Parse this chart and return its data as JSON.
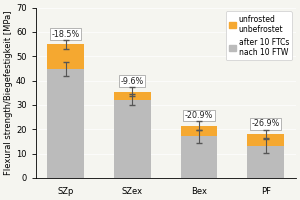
{
  "categories": [
    "SZp",
    "SZex",
    "Bex",
    "PF"
  ],
  "unfrosted_values": [
    55.0,
    35.5,
    21.5,
    18.0
  ],
  "after_ftc_values": [
    44.8,
    32.2,
    17.0,
    13.2
  ],
  "error_bars_top": [
    1.8,
    1.8,
    1.8,
    1.8
  ],
  "error_bars_after": [
    2.8,
    2.2,
    2.5,
    2.8
  ],
  "percentages": [
    "-18.5%",
    "-9.6%",
    "-20.9%",
    "-26.9%"
  ],
  "color_unfrosted": "#F5A830",
  "color_after": "#BBBBBB",
  "bg_color": "#F5F5F0",
  "ylabel": "Flexural strength/Biegefestigkeit [MPa]",
  "ylim": [
    0,
    70
  ],
  "yticks": [
    0,
    10,
    20,
    30,
    40,
    50,
    60,
    70
  ],
  "legend_unfrosted": "unfrosted\nunbefrostet",
  "legend_after": "after 10 FTCs\nnach 10 FTW",
  "bar_width": 0.55,
  "ylabel_fontsize": 6.0,
  "label_fontsize": 5.8,
  "tick_fontsize": 6.0,
  "legend_fontsize": 5.5
}
